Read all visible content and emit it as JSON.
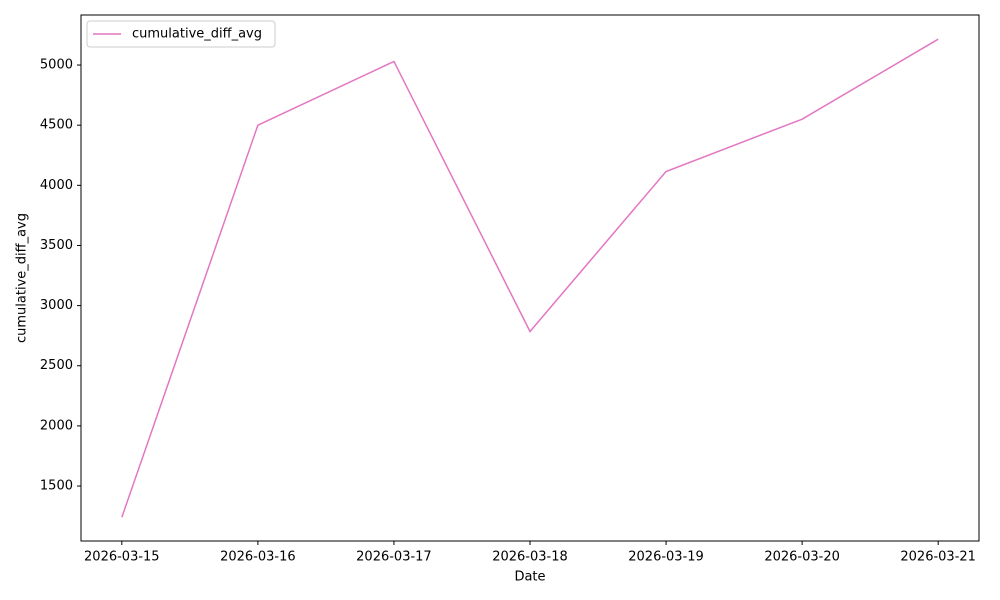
{
  "chart_data": {
    "type": "line",
    "x_label": "Date",
    "y_label": "cumulative_diff_avg",
    "categories": [
      "2026-03-15",
      "2026-03-16",
      "2026-03-17",
      "2026-03-18",
      "2026-03-19",
      "2026-03-20",
      "2026-03-21"
    ],
    "series": [
      {
        "name": "cumulative_diff_avg",
        "color": "#e377c2",
        "values": [
          1240,
          4500,
          5030,
          2785,
          4115,
          4550,
          5215
        ]
      }
    ],
    "ylim": [
      1043,
      5416
    ],
    "yticks": [
      1500,
      2000,
      2500,
      3000,
      3500,
      4000,
      4500,
      5000
    ],
    "legend": "upper-left"
  }
}
